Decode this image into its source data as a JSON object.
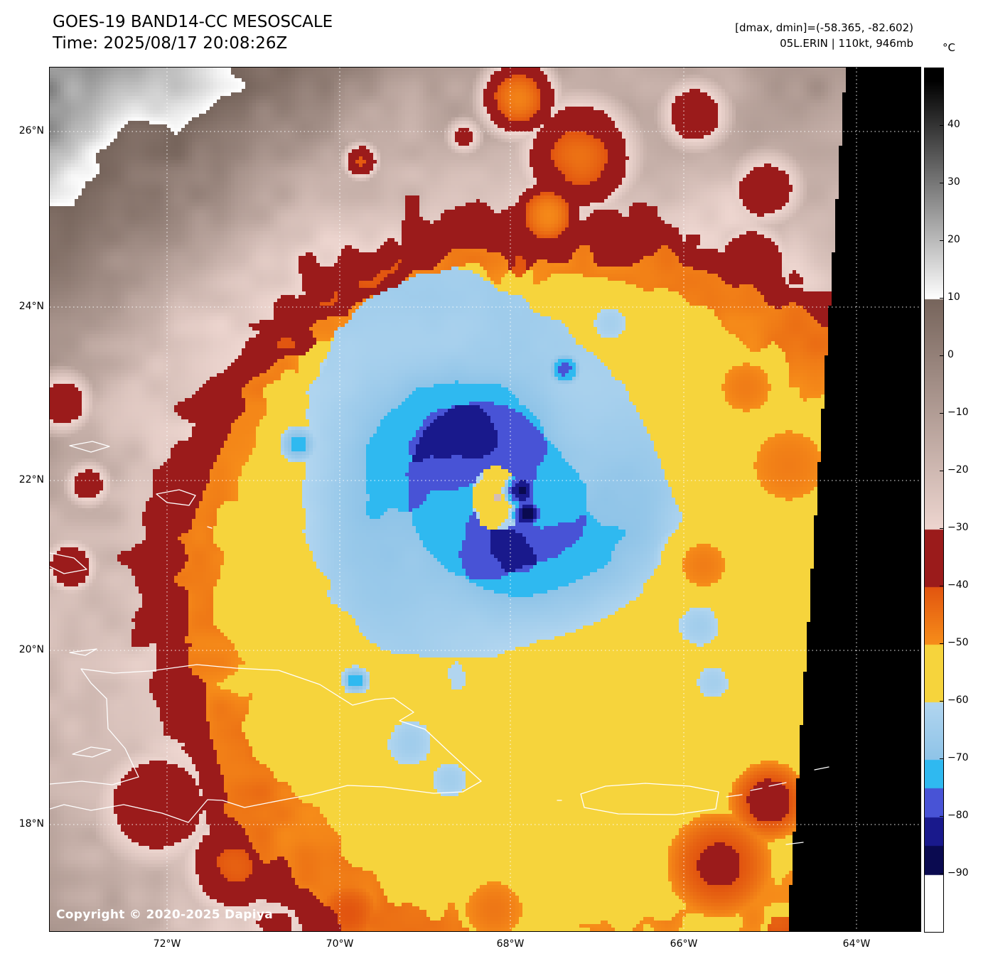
{
  "header": {
    "title": "GOES-19 BAND14-CC MESOSCALE",
    "time": "Time: 2025/08/17 20:08:26Z",
    "dmax_dmin": "[dmax, dmin]=(-58.365, -82.602)",
    "storm_info": "05L.ERIN | 110kt, 946mb"
  },
  "map": {
    "copyright": "Copyright © 2020-2025 Dapiya",
    "lat_labels": [
      "26°N",
      "24°N",
      "22°N",
      "20°N",
      "18°N"
    ],
    "lon_labels": [
      "72°W",
      "70°W",
      "68°W",
      "66°W",
      "64°W"
    ]
  },
  "colorbar": {
    "unit": "°C",
    "range_top_c": 50,
    "range_bottom_c": -100,
    "ticks": [
      {
        "value": 40,
        "label": "40"
      },
      {
        "value": 30,
        "label": "30"
      },
      {
        "value": 20,
        "label": "20"
      },
      {
        "value": 10,
        "label": "10"
      },
      {
        "value": 0,
        "label": "0"
      },
      {
        "value": -10,
        "label": "−10"
      },
      {
        "value": -20,
        "label": "−20"
      },
      {
        "value": -30,
        "label": "−30"
      },
      {
        "value": -40,
        "label": "−40"
      },
      {
        "value": -50,
        "label": "−50"
      },
      {
        "value": -60,
        "label": "−60"
      },
      {
        "value": -70,
        "label": "−70"
      },
      {
        "value": -80,
        "label": "−80"
      },
      {
        "value": -90,
        "label": "−90"
      }
    ]
  },
  "palette": {
    "no_data": "#000000",
    "gray_warm": "#000000",
    "gray_cold": "#ffffff",
    "taupe_10c": "#77655c",
    "pink_m30c": "#eed6d0",
    "dark_red": "#9b1b1b",
    "orange_warm": "#e25510",
    "orange_cold": "#f78e1a",
    "yellow": "#f6d43c",
    "lightblue_warm": "#b2d6f0",
    "lightblue_cold": "#8fc4e8",
    "cyan": "#2fb9f0",
    "royal_blue": "#4853d6",
    "navy": "#19198c",
    "dark_navy": "#0a0a50",
    "coldest_white": "#ffffff"
  }
}
